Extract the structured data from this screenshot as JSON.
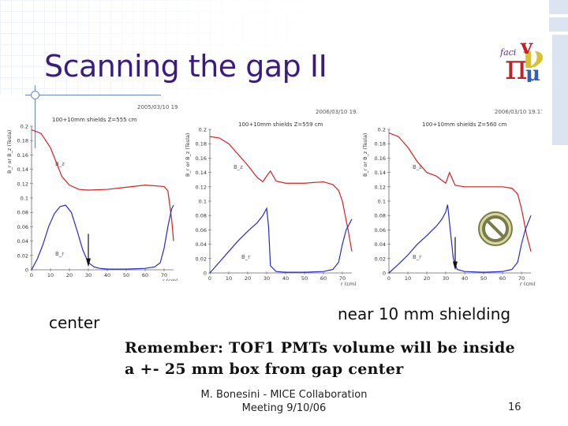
{
  "slide": {
    "title": "Scanning the gap II",
    "caption_left": "center",
    "caption_right": "near 10 mm shielding",
    "remember_line1": "Remember: TOF1 PMTs volume will be inside",
    "remember_line2": "a +- 25 mm box from gap center",
    "footer_line1": "M. Bonesini - MICE Collaboration",
    "footer_line2": "Meeting 9/10/06",
    "page_number": "16",
    "title_color": "#3a1c80"
  },
  "chart_data": [
    {
      "type": "line",
      "timestamp": "2005/03/10 19.13",
      "title": "100+10mm shields Z=555 cm",
      "ylabel": "B_r or B_z (Tesla)",
      "xlabel": "r (cm)",
      "xlim": [
        0,
        75
      ],
      "ylim": [
        0,
        0.2
      ],
      "xticks": [
        0,
        10,
        20,
        30,
        40,
        50,
        60,
        70
      ],
      "yticks": [
        0,
        0.02,
        0.04,
        0.06,
        0.08,
        0.1,
        0.12,
        0.14,
        0.16,
        0.18,
        0.2
      ],
      "tick_labels_x": [
        "0",
        "10",
        "20",
        "30",
        "40",
        "50",
        "60",
        "70"
      ],
      "tick_labels_y": [
        "0",
        "0.02",
        "0.04",
        "0.06",
        "0.08",
        "0.1",
        "0.12",
        "0.14",
        "0.16",
        "0.18",
        "0.2"
      ],
      "arrow_x": 30,
      "series": [
        {
          "name": "B_z",
          "color": "#d42020",
          "x": [
            0,
            5,
            10,
            13,
            16,
            20,
            25,
            30,
            40,
            50,
            60,
            70,
            72,
            74,
            75
          ],
          "y": [
            0.195,
            0.19,
            0.17,
            0.15,
            0.13,
            0.118,
            0.112,
            0.111,
            0.112,
            0.115,
            0.118,
            0.116,
            0.11,
            0.07,
            0.04
          ]
        },
        {
          "name": "B_r",
          "color": "#2a2ac8",
          "x": [
            0,
            3,
            6,
            9,
            12,
            15,
            18,
            21,
            24,
            27,
            30,
            33,
            36,
            40,
            50,
            60,
            65,
            68,
            70,
            72,
            74,
            75
          ],
          "y": [
            0,
            0.015,
            0.035,
            0.06,
            0.078,
            0.088,
            0.09,
            0.08,
            0.055,
            0.028,
            0.01,
            0.004,
            0.002,
            0.001,
            0.001,
            0.002,
            0.004,
            0.01,
            0.03,
            0.06,
            0.085,
            0.09
          ]
        }
      ],
      "series_labels": [
        "B_z",
        "B_r"
      ]
    },
    {
      "type": "line",
      "timestamp": "2006/03/10 19.15",
      "title": "100+10mm shields Z=559 cm",
      "ylabel": "B_r or B_z (Tesla)",
      "xlabel": "r (cm)",
      "xlim": [
        0,
        75
      ],
      "ylim": [
        0,
        0.2
      ],
      "xticks": [
        0,
        10,
        20,
        30,
        40,
        50,
        60,
        70
      ],
      "yticks": [
        0,
        0.02,
        0.04,
        0.06,
        0.08,
        0.1,
        0.12,
        0.14,
        0.16,
        0.18,
        0.2
      ],
      "tick_labels_x": [
        "0",
        "10",
        "20",
        "30",
        "40",
        "50",
        "60",
        "70"
      ],
      "tick_labels_y": [
        "0",
        "0.02",
        "0.04",
        "0.06",
        "0.08",
        "0.1",
        "0.12",
        "0.14",
        "0.16",
        "0.18",
        "0.2"
      ],
      "arrow_x": null,
      "series": [
        {
          "name": "B_z",
          "color": "#d42020",
          "x": [
            0,
            5,
            10,
            15,
            20,
            25,
            28,
            30,
            32,
            35,
            40,
            50,
            60,
            65,
            68,
            70,
            73,
            75
          ],
          "y": [
            0.19,
            0.188,
            0.18,
            0.165,
            0.15,
            0.133,
            0.127,
            0.135,
            0.142,
            0.128,
            0.125,
            0.125,
            0.127,
            0.123,
            0.115,
            0.1,
            0.06,
            0.03
          ]
        },
        {
          "name": "B_r",
          "color": "#2a2ac8",
          "x": [
            0,
            5,
            10,
            15,
            20,
            25,
            28,
            30,
            31,
            32,
            35,
            40,
            50,
            60,
            65,
            68,
            70,
            72,
            75
          ],
          "y": [
            0,
            0.015,
            0.03,
            0.045,
            0.058,
            0.07,
            0.08,
            0.09,
            0.065,
            0.01,
            0.002,
            0.001,
            0.001,
            0.002,
            0.005,
            0.015,
            0.04,
            0.06,
            0.075
          ]
        }
      ],
      "series_labels": [
        "B_z",
        "B_r"
      ]
    },
    {
      "type": "line",
      "timestamp": "2006/03/10 19.17",
      "title": "100+10mm shields Z=560 cm",
      "ylabel": "B_r or B_z (Tesla)",
      "xlabel": "r (cm)",
      "xlim": [
        0,
        75
      ],
      "ylim": [
        0,
        0.2
      ],
      "xticks": [
        0,
        10,
        20,
        30,
        40,
        50,
        60,
        70
      ],
      "yticks": [
        0,
        0.02,
        0.04,
        0.06,
        0.08,
        0.1,
        0.12,
        0.14,
        0.16,
        0.18,
        0.2
      ],
      "tick_labels_x": [
        "0",
        "10",
        "20",
        "30",
        "40",
        "50",
        "60",
        "70"
      ],
      "tick_labels_y": [
        "0",
        "0.02",
        "0.04",
        "0.06",
        "0.08",
        "0.1",
        "0.12",
        "0.14",
        "0.16",
        "0.18",
        "0.2"
      ],
      "arrow_x": 35,
      "series": [
        {
          "name": "B_z",
          "color": "#d42020",
          "x": [
            0,
            5,
            10,
            15,
            20,
            25,
            30,
            32,
            35,
            40,
            50,
            60,
            65,
            68,
            70,
            73,
            75
          ],
          "y": [
            0.195,
            0.19,
            0.175,
            0.155,
            0.14,
            0.135,
            0.125,
            0.14,
            0.122,
            0.12,
            0.12,
            0.12,
            0.118,
            0.11,
            0.09,
            0.05,
            0.03
          ]
        },
        {
          "name": "B_r",
          "color": "#2a2ac8",
          "x": [
            0,
            5,
            10,
            15,
            20,
            25,
            28,
            30,
            31,
            32,
            34,
            36,
            40,
            50,
            60,
            65,
            68,
            70,
            72,
            75
          ],
          "y": [
            0,
            0.012,
            0.025,
            0.04,
            0.052,
            0.065,
            0.075,
            0.085,
            0.095,
            0.07,
            0.02,
            0.005,
            0.002,
            0.001,
            0.002,
            0.005,
            0.015,
            0.04,
            0.06,
            0.08
          ]
        }
      ],
      "series_labels": [
        "B_z",
        "B_r"
      ]
    }
  ]
}
